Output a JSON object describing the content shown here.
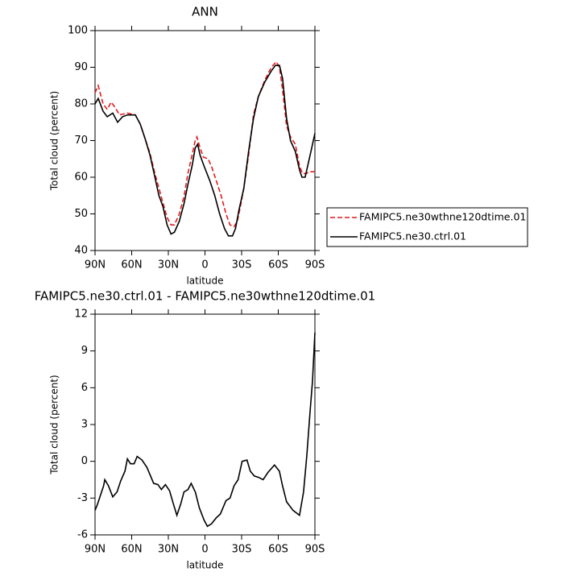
{
  "chart_data": [
    {
      "type": "line",
      "title": "ANN",
      "xlabel": "latitude",
      "ylabel": "Total cloud (percent)",
      "xlim": [
        90,
        -90
      ],
      "xticks": [
        {
          "value": 90,
          "label": "90N"
        },
        {
          "value": 60,
          "label": "60N"
        },
        {
          "value": 30,
          "label": "30N"
        },
        0,
        {
          "value": -30,
          "label": "30S"
        },
        {
          "value": -60,
          "label": "60S"
        },
        {
          "value": -90,
          "label": "90S"
        }
      ],
      "ylim": [
        40,
        100
      ],
      "yticks": [
        40,
        50,
        60,
        70,
        80,
        90,
        100
      ],
      "legend": "right",
      "series": [
        {
          "name": "FAMIPC5.ne30wthne120dtime.01",
          "color": "#e41a1c",
          "linestyle": "dashed",
          "x": [
            90,
            87.4,
            83.4,
            80,
            76.8,
            73.5,
            70,
            63.5,
            57,
            53,
            49,
            45,
            41,
            37.7,
            34.4,
            31,
            27.8,
            25,
            21,
            17,
            14,
            10.6,
            8,
            6.6,
            4,
            1.3,
            -2.6,
            -5.3,
            -9.3,
            -13.2,
            -17.2,
            -20.5,
            -23.8,
            -26.5,
            -29,
            -31.8,
            -35.7,
            -39.7,
            -43.7,
            -49,
            -54.3,
            -58.3,
            -61,
            -63.5,
            -66.8,
            -70,
            -74,
            -77.4,
            -80,
            -82.7,
            -86,
            -90
          ],
          "values": [
            83,
            85,
            80,
            78.5,
            80.5,
            79,
            77,
            77.5,
            77,
            74.5,
            70.5,
            66.5,
            61,
            57,
            53,
            49,
            47,
            47,
            50,
            55,
            61,
            66,
            70,
            71,
            68,
            65.5,
            65,
            63,
            59,
            55,
            50,
            47,
            46.5,
            48,
            52,
            57,
            66,
            77,
            82,
            86.5,
            90,
            91.5,
            90,
            84,
            74,
            71,
            69,
            63,
            61,
            61,
            61.5,
            61.5
          ]
        },
        {
          "name": "FAMIPC5.ne30.ctrl.01",
          "color": "#000000",
          "linestyle": "solid",
          "x": [
            90,
            87.4,
            83.4,
            80,
            75.5,
            71.5,
            67.5,
            63.5,
            57,
            53,
            49,
            45,
            41,
            37.7,
            34.4,
            31,
            27.8,
            25,
            21,
            17,
            14,
            10.6,
            8,
            6,
            4,
            0.7,
            -4,
            -8,
            -12,
            -16,
            -19.2,
            -22.5,
            -25,
            -27.8,
            -31.8,
            -35.7,
            -39.7,
            -43.7,
            -49,
            -54.3,
            -57.6,
            -61,
            -63.5,
            -66.8,
            -70,
            -74,
            -77.4,
            -79.4,
            -82,
            -84.7,
            -87.4,
            -90
          ],
          "values": [
            80,
            81.5,
            78,
            76.5,
            77.5,
            75,
            76.5,
            77,
            77,
            74.5,
            70.5,
            66,
            60,
            55,
            52,
            47,
            44.5,
            45,
            48,
            53,
            58,
            63,
            68,
            69,
            66,
            63,
            59,
            55,
            50,
            46,
            44,
            44,
            46,
            51,
            57,
            67,
            76,
            82,
            86,
            89,
            90.5,
            90.5,
            87,
            76,
            70,
            67,
            62,
            60,
            60,
            64,
            68,
            72
          ]
        }
      ]
    },
    {
      "type": "line",
      "title": "FAMIPC5.ne30.ctrl.01 - FAMIPC5.ne30wthne120dtime.01",
      "xlabel": "latitude",
      "ylabel": "Total cloud (percent)",
      "xlim": [
        90,
        -90
      ],
      "xticks": [
        {
          "value": 90,
          "label": "90N"
        },
        {
          "value": 60,
          "label": "60N"
        },
        {
          "value": 30,
          "label": "30N"
        },
        0,
        {
          "value": -30,
          "label": "30S"
        },
        {
          "value": -60,
          "label": "60S"
        },
        {
          "value": -90,
          "label": "90S"
        }
      ],
      "ylim": [
        -6,
        12
      ],
      "yticks": [
        -6,
        -3,
        0,
        3,
        6,
        9,
        12
      ],
      "series": [
        {
          "color": "#000000",
          "linestyle": "solid",
          "x": [
            90,
            88,
            83,
            82,
            79,
            75.5,
            72,
            69,
            65.5,
            63.5,
            61,
            58,
            55.5,
            51.5,
            47.5,
            42,
            38.5,
            35.7,
            32.4,
            29,
            25.8,
            23,
            19.9,
            17.2,
            13.9,
            11.3,
            7.9,
            4.6,
            0.7,
            -2,
            -5.3,
            -9.3,
            -12.6,
            -17.2,
            -20.5,
            -23.8,
            -27.1,
            -30.4,
            -34.4,
            -37.1,
            -40.4,
            -43.7,
            -47.6,
            -51.6,
            -56.9,
            -60.9,
            -63.5,
            -66.8,
            -72.1,
            -77.4,
            -80.7,
            -83.4,
            -86,
            -88,
            -90
          ],
          "values": [
            -4,
            -3.5,
            -2,
            -1.5,
            -2,
            -2.9,
            -2.5,
            -1.6,
            -0.8,
            0.2,
            -0.2,
            -0.2,
            0.4,
            0.1,
            -0.5,
            -1.8,
            -1.9,
            -2.3,
            -1.9,
            -2.4,
            -3.5,
            -4.4,
            -3.5,
            -2.5,
            -2.3,
            -1.8,
            -2.5,
            -3.8,
            -4.8,
            -5.3,
            -5.1,
            -4.6,
            -4.3,
            -3.2,
            -3,
            -2,
            -1.5,
            0,
            0.1,
            -0.8,
            -1.2,
            -1.3,
            -1.5,
            -0.9,
            -0.3,
            -0.8,
            -2,
            -3.3,
            -4,
            -4.4,
            -2.5,
            0.5,
            4,
            6.5,
            10.5
          ]
        }
      ]
    }
  ]
}
